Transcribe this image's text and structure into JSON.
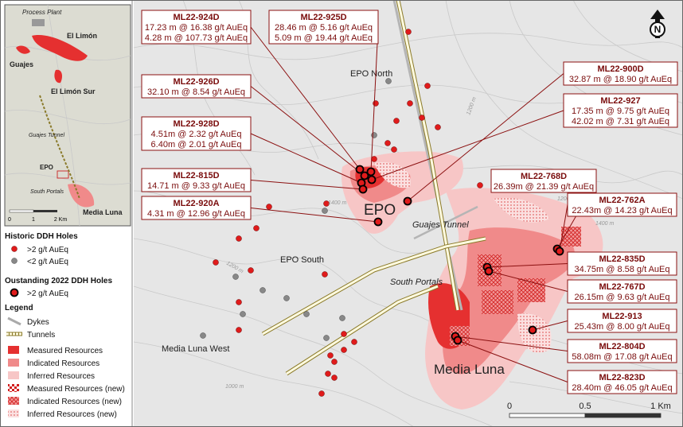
{
  "inset": {
    "labels": [
      "Process Plant",
      "El Limón",
      "Guajes",
      "El Limón Sur",
      "Guajes Tunnel",
      "EPO",
      "South Portals",
      "Media Luna"
    ],
    "scale": [
      "0",
      "1",
      "2 Km"
    ]
  },
  "legend": {
    "historic_title": "Historic DDH Holes",
    "historic_high": ">2 g/t AuEq",
    "historic_low": "<2 g/t AuEq",
    "new_title": "Oustanding 2022 DDH Holes",
    "new_high": ">2 g/t AuEq",
    "title": "Legend",
    "items": [
      "Dykes",
      "Tunnels",
      "Measured Resources",
      "Indicated Resources",
      "Inferred Resources",
      "Measured Resources (new)",
      "Indicated Resources (new)",
      "Inferred Resources (new)"
    ]
  },
  "map": {
    "area_labels": [
      "EPO North",
      "EPO",
      "EPO South",
      "Media Luna West",
      "Guajes Tunnel",
      "South Portals",
      "Media Luna"
    ],
    "contour_labels": [
      "1200 m",
      "1400 m",
      "1200 m",
      "1000 m",
      "1400 m",
      "1200 m"
    ],
    "scale": [
      "0",
      "0.5",
      "1 Km"
    ],
    "north": "N"
  },
  "callouts": [
    {
      "id": "ML22-924D",
      "lines": [
        "17.23 m @ 16.38 g/t AuEq",
        "4.28 m @ 107.73 g/t AuEq"
      ]
    },
    {
      "id": "ML22-925D",
      "lines": [
        "28.46 m @ 5.16 g/t AuEq",
        "5.09 m @ 19.44 g/t AuEq"
      ]
    },
    {
      "id": "ML22-926D",
      "lines": [
        "32.10 m @ 8.54 g/t AuEq"
      ]
    },
    {
      "id": "ML22-928D",
      "lines": [
        "4.51m @ 2.32 g/t AuEq",
        "6.40m @ 2.01 g/t AuEq"
      ]
    },
    {
      "id": "ML22-815D",
      "lines": [
        "14.71 m @ 9.33 g/t AuEq"
      ]
    },
    {
      "id": "ML22-920A",
      "lines": [
        "4.31 m @ 12.96 g/t AuEq"
      ]
    },
    {
      "id": "ML22-900D",
      "lines": [
        "32.87 m @ 18.90 g/t AuEq"
      ]
    },
    {
      "id": "ML22-927",
      "lines": [
        "17.35 m @ 9.75 g/t AuEq",
        "42.02 m @ 7.31 g/t AuEq"
      ]
    },
    {
      "id": "ML22-768D",
      "lines": [
        "26.39m @ 21.39 g/t AuEq"
      ]
    },
    {
      "id": "ML22-762A",
      "lines": [
        "22.43m @ 14.23 g/t AuEq"
      ]
    },
    {
      "id": "ML22-835D",
      "lines": [
        "34.75m @ 8.58 g/t AuEq"
      ]
    },
    {
      "id": "ML22-767D",
      "lines": [
        "26.15m @ 9.63 g/t AuEq"
      ]
    },
    {
      "id": "ML22-913",
      "lines": [
        "25.43m @ 8.00 g/t AuEq"
      ]
    },
    {
      "id": "ML22-804D",
      "lines": [
        "58.08m @ 17.08 g/t AuEq"
      ]
    },
    {
      "id": "ML22-823D",
      "lines": [
        "28.40m @ 46.05 g/t AuEq"
      ]
    }
  ]
}
